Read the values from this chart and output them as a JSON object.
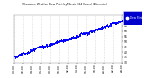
{
  "bg_color": "#ffffff",
  "plot_bg_color": "#ffffff",
  "dot_color": "#0000ff",
  "legend_bg": "#0000cc",
  "legend_text_color": "#ffffff",
  "legend_label": "Dew Point",
  "grid_color": "#aaaaaa",
  "axis_text_color": "#000000",
  "tick_color": "#000000",
  "y_min": 30,
  "y_max": 75,
  "x_min": 0,
  "x_max": 1440,
  "n_points": 1440,
  "seed": 42,
  "title_color": "#000000",
  "border_color": "#888888"
}
